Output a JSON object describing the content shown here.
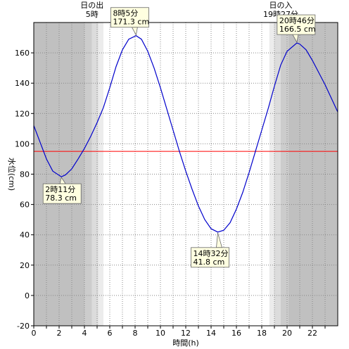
{
  "chart_data": {
    "type": "line",
    "xlabel": "時間(h)",
    "ylabel": "水位(cm)",
    "xlim": [
      0,
      24
    ],
    "ylim": [
      -20,
      180
    ],
    "x_ticks": [
      0,
      2,
      4,
      6,
      8,
      10,
      12,
      14,
      16,
      18,
      20,
      22
    ],
    "y_ticks": [
      -20,
      0,
      20,
      40,
      60,
      80,
      100,
      120,
      140,
      160
    ],
    "grid": true,
    "reference_line": {
      "value": 95,
      "color": "#ff0000"
    },
    "background_bands": [
      {
        "from": 0,
        "to": 4,
        "color": "#c0c0c0"
      },
      {
        "from": 4,
        "to": 4.6,
        "color": "#cccccc"
      },
      {
        "from": 4.6,
        "to": 5.1,
        "color": "#dcdcdc"
      },
      {
        "from": 5.1,
        "to": 5.5,
        "color": "#ececec"
      },
      {
        "from": 18.6,
        "to": 19.0,
        "color": "#ececec"
      },
      {
        "from": 19.0,
        "to": 19.5,
        "color": "#dcdcdc"
      },
      {
        "from": 19.5,
        "to": 20.1,
        "color": "#cccccc"
      },
      {
        "from": 20.1,
        "to": 24,
        "color": "#c0c0c0"
      }
    ],
    "series": [
      {
        "color": "#0000cc",
        "x": [
          0,
          0.5,
          1,
          1.5,
          2.18,
          2.5,
          3,
          3.5,
          4,
          4.5,
          5,
          5.5,
          6,
          6.5,
          7,
          7.5,
          8.08,
          8.5,
          9,
          9.5,
          10,
          10.5,
          11,
          11.5,
          12,
          12.5,
          13,
          13.5,
          14,
          14.53,
          15,
          15.5,
          16,
          16.5,
          17,
          17.5,
          18,
          18.5,
          19,
          19.5,
          20,
          20.77,
          21,
          21.5,
          22,
          22.5,
          23,
          23.5,
          24
        ],
        "y": [
          112,
          101,
          90,
          82,
          78.3,
          79.5,
          83.5,
          90,
          97,
          105,
          114,
          124,
          137,
          151,
          162,
          169,
          171.3,
          169,
          161,
          150,
          137,
          123,
          109,
          95,
          82,
          70,
          59,
          50,
          44,
          41.8,
          43,
          48,
          57,
          68,
          81,
          95,
          109,
          123,
          138,
          152,
          161,
          166.5,
          165.8,
          162,
          155,
          147,
          139,
          130,
          121
        ]
      }
    ],
    "annotations": [
      {
        "x": 2.18,
        "y": 78.3,
        "time": "2時11分",
        "value": "78.3 cm"
      },
      {
        "x": 8.08,
        "y": 171.3,
        "time": "8時5分",
        "value": "171.3 cm"
      },
      {
        "x": 14.53,
        "y": 41.8,
        "time": "14時32分",
        "value": "41.8 cm"
      },
      {
        "x": 20.77,
        "y": 166.5,
        "time": "20時46分",
        "value": "166.5 cm"
      }
    ],
    "sunrise": {
      "label": "日の出",
      "time": "5時"
    },
    "sunset": {
      "label": "日の入",
      "time": "19時27分"
    }
  }
}
